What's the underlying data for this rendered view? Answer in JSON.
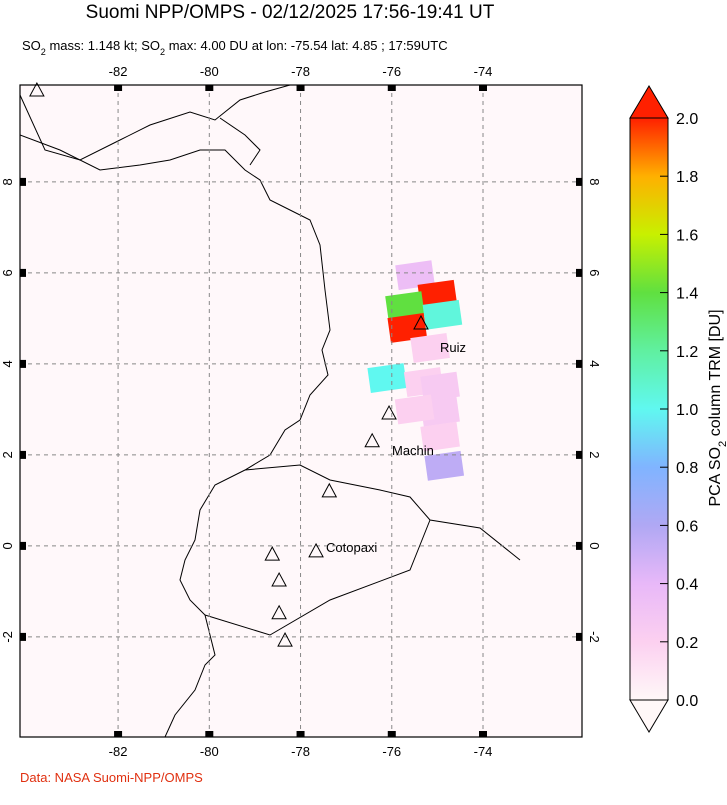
{
  "header": {
    "title": "Suomi NPP/OMPS - 02/12/2025 17:56-19:41 UT",
    "subtitle_parts": [
      "SO",
      "2",
      " mass: 1.148 kt; SO",
      "2",
      " max: 4.00 DU at lon: -75.54 lat: 4.85 ; 17:59UTC"
    ]
  },
  "map": {
    "lonlim": [
      -84.15,
      -71.83
    ],
    "latlim": [
      -4.2,
      10.13
    ],
    "lonticks": [
      -82,
      -80,
      -78,
      -76,
      -74
    ],
    "latticks": [
      -2,
      0,
      2,
      4,
      6,
      8
    ],
    "grid": true,
    "volcanoes": [
      {
        "lon": -75.36,
        "lat": 4.9
      },
      {
        "lon": -76.06,
        "lat": 2.92
      },
      {
        "lon": -76.43,
        "lat": 2.31
      },
      {
        "lon": -77.37,
        "lat": 1.21
      },
      {
        "lon": -78.62,
        "lat": -0.18
      },
      {
        "lon": -77.66,
        "lat": -0.11
      },
      {
        "lon": -78.47,
        "lat": -0.75
      },
      {
        "lon": -78.47,
        "lat": -1.47
      },
      {
        "lon": -78.34,
        "lat": -2.07
      },
      {
        "lon": -83.78,
        "lat": 10.02
      }
    ],
    "labels": [
      "Ruiz",
      "Machin",
      "Cotopaxi"
    ],
    "pixels": [
      {
        "lon": -75.49,
        "lat": 5.95,
        "value": 0.35
      },
      {
        "lon": -75.0,
        "lat": 5.52,
        "value": 2.0
      },
      {
        "lon": -75.71,
        "lat": 5.27,
        "value": 1.4
      },
      {
        "lon": -74.89,
        "lat": 5.08,
        "value": 1.05
      },
      {
        "lon": -75.66,
        "lat": 4.79,
        "value": 2.0
      },
      {
        "lon": -75.16,
        "lat": 4.35,
        "value": 0.2
      },
      {
        "lon": -76.1,
        "lat": 3.69,
        "value": 1.0
      },
      {
        "lon": -75.3,
        "lat": 3.6,
        "value": 0.2
      },
      {
        "lon": -74.94,
        "lat": 3.5,
        "value": 0.25
      },
      {
        "lon": -74.94,
        "lat": 2.95,
        "value": 0.25
      },
      {
        "lon": -75.5,
        "lat": 3.0,
        "value": 0.2
      },
      {
        "lon": -74.94,
        "lat": 2.4,
        "value": 0.2
      },
      {
        "lon": -74.85,
        "lat": 1.76,
        "value": 0.55
      }
    ]
  },
  "colorbar": {
    "lim": [
      0,
      2
    ],
    "ticks": [
      {
        "value": 0,
        "label": "0.0"
      },
      0.2,
      0.4,
      0.6,
      0.8,
      {
        "value": 1,
        "label": "1.0"
      },
      1.2,
      1.4,
      1.6,
      1.8,
      {
        "value": 2,
        "label": "2.0"
      }
    ],
    "title_parts": [
      "PCA SO",
      "2",
      " column TRM [DU]"
    ]
  },
  "footer": {
    "credit": "Data: NASA Suomi-NPP/OMPS"
  }
}
